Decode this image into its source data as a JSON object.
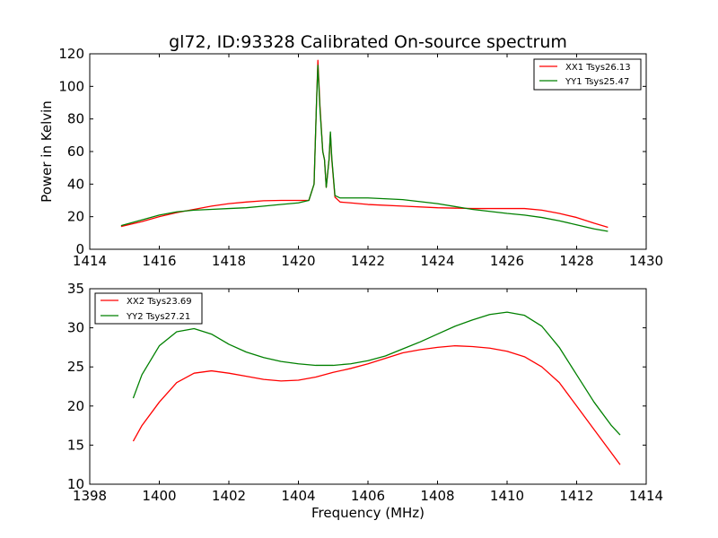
{
  "colors": {
    "xx": "#ff0000",
    "yy": "#008000",
    "axis": "#000000"
  },
  "chart_data": [
    {
      "type": "line",
      "title": "gl72, ID:93328 Calibrated On-source spectrum",
      "xlabel": "",
      "ylabel": "Power in Kelvin",
      "xlim": [
        1414,
        1430
      ],
      "ylim": [
        0,
        120
      ],
      "xticks": [
        "1414",
        "1416",
        "1418",
        "1420",
        "1422",
        "1424",
        "1426",
        "1428",
        "1430"
      ],
      "yticks": [
        "0",
        "20",
        "40",
        "60",
        "80",
        "100",
        "120"
      ],
      "legend_position": "top-right",
      "series": [
        {
          "name": "XX1 Tsys26.13",
          "color": "#ff0000",
          "x": [
            1414.9,
            1415.5,
            1416,
            1416.5,
            1417,
            1417.5,
            1418,
            1418.5,
            1419,
            1419.5,
            1420,
            1420.3,
            1420.45,
            1420.52,
            1420.56,
            1420.62,
            1420.7,
            1420.75,
            1420.8,
            1420.88,
            1420.92,
            1420.96,
            1421.05,
            1421.2,
            1421.5,
            1422,
            1423,
            1424,
            1425,
            1426,
            1426.5,
            1427,
            1427.5,
            1428,
            1428.5,
            1428.9
          ],
          "y": [
            14,
            17,
            20,
            22.5,
            24.5,
            26.5,
            28,
            29,
            29.8,
            30,
            30,
            30,
            40,
            90,
            116,
            88,
            60,
            55,
            38,
            55,
            71,
            55,
            32,
            29,
            28.5,
            27.5,
            26.5,
            25.5,
            25,
            25,
            25,
            24,
            22,
            19.5,
            16,
            13.5
          ]
        },
        {
          "name": "YY1 Tsys25.47",
          "color": "#008000",
          "x": [
            1414.9,
            1415.5,
            1416,
            1416.5,
            1417,
            1417.5,
            1418,
            1418.5,
            1419,
            1419.5,
            1420,
            1420.3,
            1420.45,
            1420.52,
            1420.56,
            1420.62,
            1420.7,
            1420.75,
            1420.8,
            1420.88,
            1420.92,
            1420.96,
            1421.05,
            1421.2,
            1421.5,
            1422,
            1423,
            1424,
            1425,
            1426,
            1426.5,
            1427,
            1427.5,
            1428,
            1428.5,
            1428.9
          ],
          "y": [
            14.5,
            18,
            21,
            23,
            24,
            24.5,
            25,
            25.5,
            26.5,
            27.5,
            28.5,
            30,
            40,
            90,
            113,
            86,
            60,
            55,
            38,
            55,
            72,
            56,
            33,
            31.5,
            31.5,
            31.5,
            30.5,
            28,
            24.5,
            22,
            21,
            19.5,
            17.5,
            15,
            12.5,
            11
          ]
        }
      ]
    },
    {
      "type": "line",
      "title": "",
      "xlabel": "Frequency (MHz)",
      "ylabel": "",
      "xlim": [
        1398,
        1414
      ],
      "ylim": [
        10,
        35
      ],
      "xticks": [
        "1398",
        "1400",
        "1402",
        "1404",
        "1406",
        "1408",
        "1410",
        "1412",
        "1414"
      ],
      "yticks": [
        "10",
        "15",
        "20",
        "25",
        "30",
        "35"
      ],
      "legend_position": "top-left",
      "series": [
        {
          "name": "XX2 Tsys23.69",
          "color": "#ff0000",
          "x": [
            1399.25,
            1399.5,
            1400,
            1400.5,
            1401,
            1401.5,
            1402,
            1402.5,
            1403,
            1403.5,
            1404,
            1404.5,
            1405,
            1405.5,
            1406,
            1406.5,
            1407,
            1407.5,
            1408,
            1408.5,
            1409,
            1409.5,
            1410,
            1410.5,
            1411,
            1411.5,
            1412,
            1412.5,
            1413,
            1413.25
          ],
          "y": [
            15.5,
            17.5,
            20.5,
            23,
            24.2,
            24.5,
            24.2,
            23.8,
            23.4,
            23.2,
            23.3,
            23.7,
            24.3,
            24.8,
            25.4,
            26.1,
            26.8,
            27.2,
            27.5,
            27.7,
            27.6,
            27.4,
            27,
            26.3,
            25,
            23,
            20,
            17,
            14,
            12.5
          ]
        },
        {
          "name": "YY2 Tsys27.21",
          "color": "#008000",
          "x": [
            1399.25,
            1399.5,
            1400,
            1400.5,
            1401,
            1401.5,
            1402,
            1402.5,
            1403,
            1403.5,
            1404,
            1404.5,
            1405,
            1405.5,
            1406,
            1406.5,
            1407,
            1407.5,
            1408,
            1408.5,
            1409,
            1409.5,
            1410,
            1410.5,
            1411,
            1411.5,
            1412,
            1412.5,
            1413,
            1413.25
          ],
          "y": [
            21,
            24,
            27.7,
            29.5,
            29.9,
            29.2,
            27.9,
            26.9,
            26.2,
            25.7,
            25.4,
            25.2,
            25.2,
            25.4,
            25.8,
            26.4,
            27.3,
            28.2,
            29.2,
            30.2,
            31,
            31.7,
            32,
            31.6,
            30.2,
            27.5,
            24,
            20.5,
            17.5,
            16.3
          ]
        }
      ]
    }
  ]
}
